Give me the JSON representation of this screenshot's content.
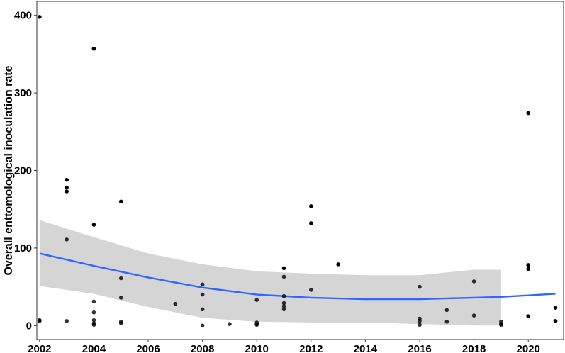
{
  "chart_data": {
    "type": "scatter",
    "title": "",
    "xlabel": "",
    "ylabel": "Overall enttomological inoculation rate",
    "xlim": [
      2001.9,
      2021.3
    ],
    "ylim": [
      -18,
      418
    ],
    "x_ticks": [
      "2002",
      "2004",
      "2006",
      "2008",
      "2010",
      "2012",
      "2014",
      "2016",
      "2018",
      "2020"
    ],
    "y_ticks": [
      "0",
      "100",
      "200",
      "300",
      "400"
    ],
    "grid": false,
    "legend": "none",
    "colors": {
      "points": "#000000",
      "trend_line": "#3366FF",
      "confidence_band": "#d3d3d3",
      "panel_border": "#333333"
    },
    "points": [
      {
        "x": 2002,
        "y": 398
      },
      {
        "x": 2002,
        "y": 7
      },
      {
        "x": 2002,
        "y": 6
      },
      {
        "x": 2003,
        "y": 188
      },
      {
        "x": 2003,
        "y": 178
      },
      {
        "x": 2003,
        "y": 173
      },
      {
        "x": 2003,
        "y": 111
      },
      {
        "x": 2003,
        "y": 6
      },
      {
        "x": 2004,
        "y": 357
      },
      {
        "x": 2004,
        "y": 130
      },
      {
        "x": 2004,
        "y": 31
      },
      {
        "x": 2004,
        "y": 17
      },
      {
        "x": 2004,
        "y": 7
      },
      {
        "x": 2004,
        "y": 3
      },
      {
        "x": 2004,
        "y": 1
      },
      {
        "x": 2005,
        "y": 160
      },
      {
        "x": 2005,
        "y": 61
      },
      {
        "x": 2005,
        "y": 36
      },
      {
        "x": 2005,
        "y": 5
      },
      {
        "x": 2005,
        "y": 3
      },
      {
        "x": 2007,
        "y": 28
      },
      {
        "x": 2008,
        "y": 53
      },
      {
        "x": 2008,
        "y": 40
      },
      {
        "x": 2008,
        "y": 21
      },
      {
        "x": 2008,
        "y": 0
      },
      {
        "x": 2009,
        "y": 2
      },
      {
        "x": 2010,
        "y": 33
      },
      {
        "x": 2010,
        "y": 4
      },
      {
        "x": 2010,
        "y": 2
      },
      {
        "x": 2010,
        "y": 1
      },
      {
        "x": 2011,
        "y": 74
      },
      {
        "x": 2011,
        "y": 63
      },
      {
        "x": 2011,
        "y": 38
      },
      {
        "x": 2011,
        "y": 29
      },
      {
        "x": 2011,
        "y": 25
      },
      {
        "x": 2011,
        "y": 21
      },
      {
        "x": 2012,
        "y": 154
      },
      {
        "x": 2012,
        "y": 132
      },
      {
        "x": 2012,
        "y": 46
      },
      {
        "x": 2013,
        "y": 79
      },
      {
        "x": 2016,
        "y": 50
      },
      {
        "x": 2016,
        "y": 9
      },
      {
        "x": 2016,
        "y": 6
      },
      {
        "x": 2016,
        "y": 1
      },
      {
        "x": 2017,
        "y": 20
      },
      {
        "x": 2017,
        "y": 5
      },
      {
        "x": 2018,
        "y": 57
      },
      {
        "x": 2018,
        "y": 13
      },
      {
        "x": 2019,
        "y": 5
      },
      {
        "x": 2019,
        "y": 2
      },
      {
        "x": 2019,
        "y": 1
      },
      {
        "x": 2020,
        "y": 274
      },
      {
        "x": 2020,
        "y": 78
      },
      {
        "x": 2020,
        "y": 73
      },
      {
        "x": 2020,
        "y": 12
      },
      {
        "x": 2021,
        "y": 23
      },
      {
        "x": 2021,
        "y": 6
      }
    ],
    "trend": {
      "method": "smooth",
      "x": [
        2002,
        2004,
        2006,
        2008,
        2010,
        2012,
        2014,
        2016,
        2018,
        2019,
        2020,
        2021
      ],
      "y": [
        93,
        77,
        62,
        49,
        40,
        36,
        34,
        34,
        36,
        37,
        39,
        41
      ],
      "lower": [
        51,
        41,
        24,
        10,
        5,
        4,
        4,
        2,
        0,
        0,
        0,
        0
      ],
      "upper": [
        136,
        114,
        93,
        79,
        70,
        67,
        65,
        65,
        72,
        72,
        72,
        72
      ]
    },
    "band_x_end": 2019
  }
}
